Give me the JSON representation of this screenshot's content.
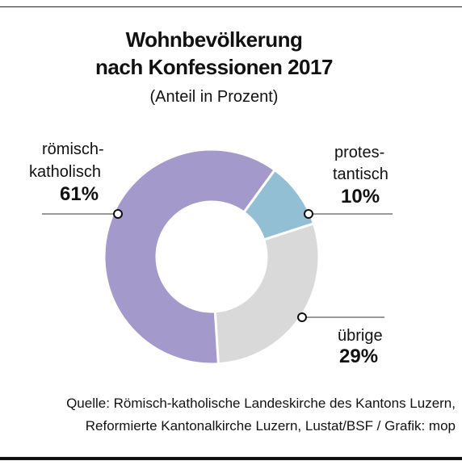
{
  "title_line1": "Wohnbevölkerung",
  "title_line2": "nach Konfessionen 2017",
  "subtitle": "(Anteil in Prozent)",
  "source_line1": "Quelle: Römisch-katholische Landeskirche des Kantons Luzern,",
  "source_line2": "Reformierte Kantonalkirche Luzern, Lustat/BSF / Grafik: mop",
  "chart_data": {
    "type": "pie",
    "variant": "donut",
    "slices": [
      {
        "label_line1": "römisch-",
        "label_line2": "katholisch",
        "value": 61,
        "value_label": "61%",
        "color": "#a399cb"
      },
      {
        "label_line1": "protes-",
        "label_line2": "tantisch",
        "value": 10,
        "value_label": "10%",
        "color": "#92bfd3"
      },
      {
        "label_line1": "übrige",
        "label_line2": "",
        "value": 29,
        "value_label": "29%",
        "color": "#d9d9d9"
      }
    ]
  }
}
